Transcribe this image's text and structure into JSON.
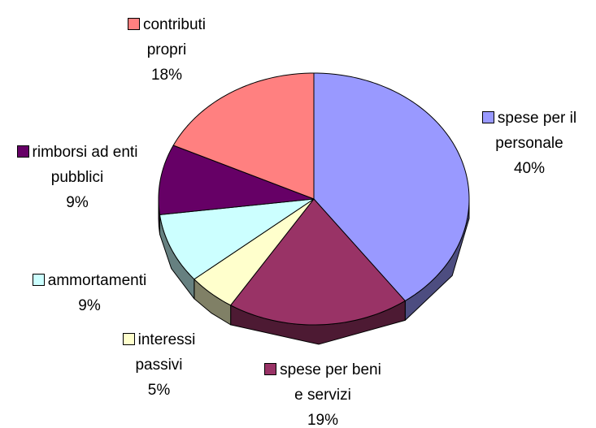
{
  "chart_data": {
    "type": "pie",
    "categories": [
      "spese per il personale",
      "spese per beni e servizi",
      "interessi passivi",
      "ammortamenti",
      "rimborsi ad enti pubblici",
      "contributi propri"
    ],
    "values": [
      40,
      19,
      5,
      9,
      9,
      18
    ],
    "value_labels": [
      "40%",
      "19%",
      "5%",
      "9%",
      "9%",
      "18%"
    ],
    "colors": [
      "#9999ff",
      "#993366",
      "#ffffcc",
      "#ccffff",
      "#660066",
      "#ff8080"
    ]
  }
}
